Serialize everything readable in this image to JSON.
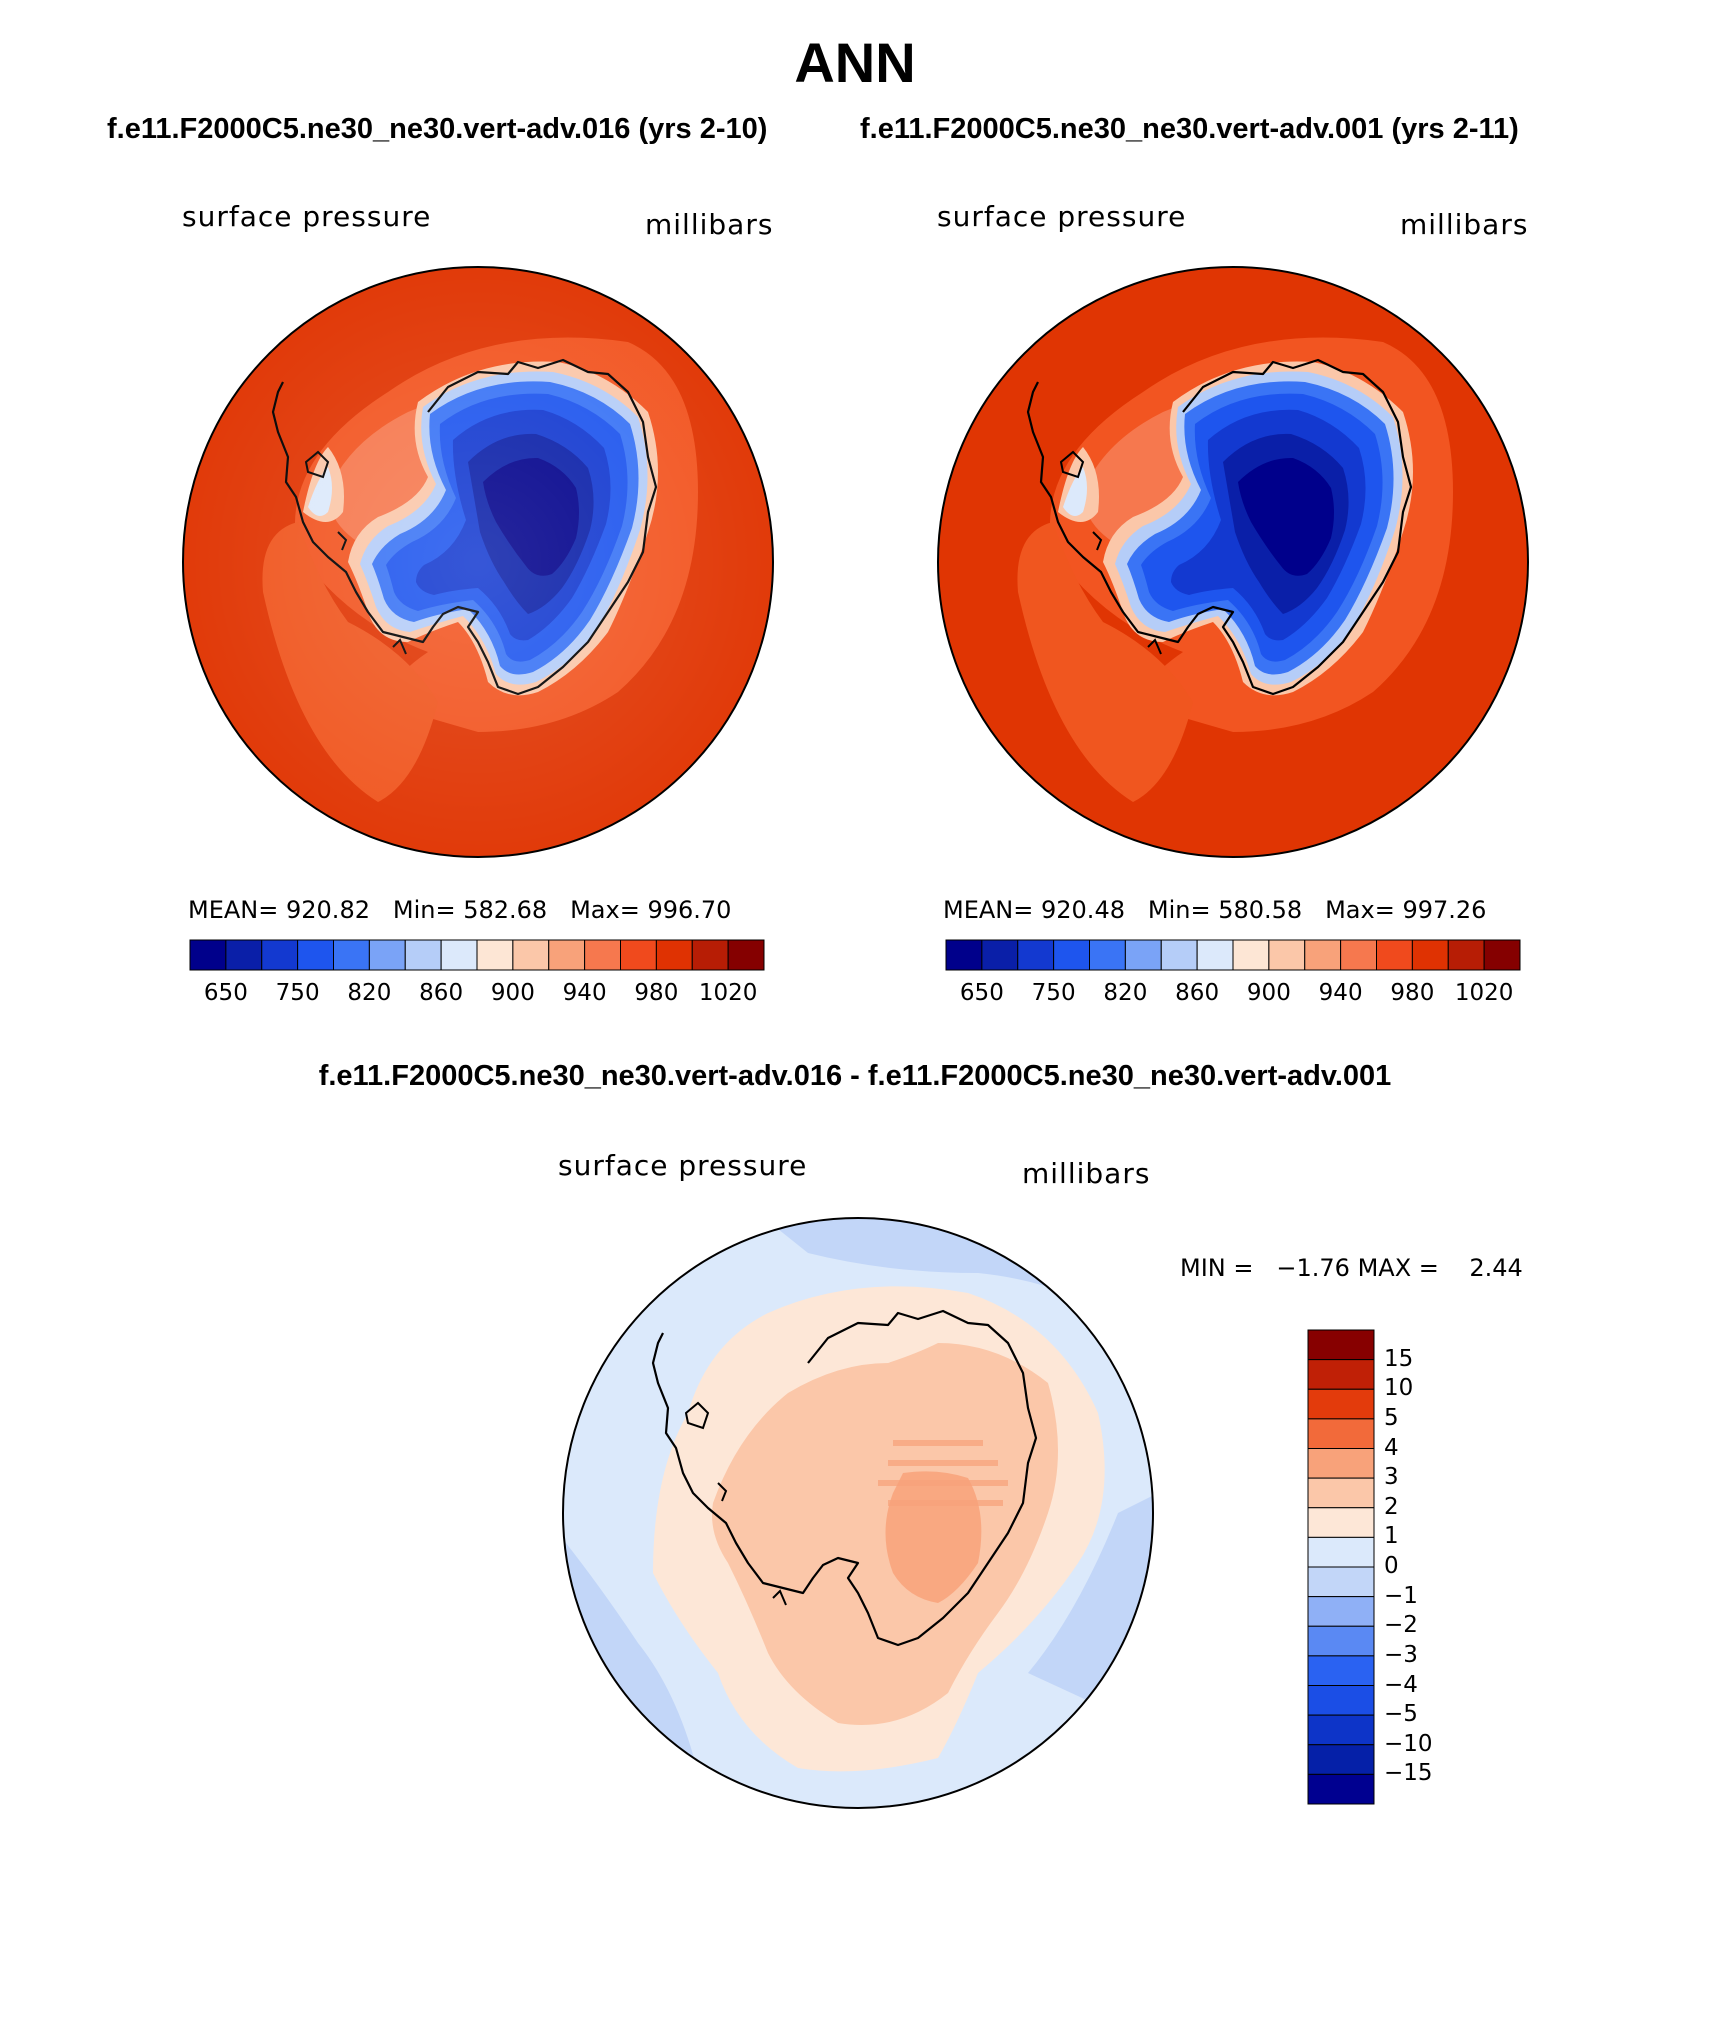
{
  "title": "ANN",
  "top_left_case": "f.e11.F2000C5.ne30_ne30.vert-adv.016 (yrs 2-10)",
  "top_right_case": "f.e11.F2000C5.ne30_ne30.vert-adv.001 (yrs 2-11)",
  "diff_title": "f.e11.F2000C5.ne30_ne30.vert-adv.016 - f.e11.F2000C5.ne30_ne30.vert-adv.001",
  "panels": [
    {
      "variable": "surface pressure",
      "units": "millibars",
      "mean_label": "MEAN=",
      "mean": "920.82",
      "min_label": "Min=",
      "min": "582.68",
      "max_label": "Max=",
      "max": "996.70"
    },
    {
      "variable": "surface pressure",
      "units": "millibars",
      "mean_label": "MEAN=",
      "mean": "920.48",
      "min_label": "Min=",
      "min": "580.58",
      "max_label": "Max=",
      "max": "997.26"
    }
  ],
  "diff_panel": {
    "variable": "surface pressure",
    "units": "millibars",
    "min_label": "MIN =",
    "min": "−1.76",
    "max_label": "MAX =",
    "max": "2.44"
  },
  "colorbar": {
    "colors": [
      "#00008b",
      "#0a1fa8",
      "#1339d0",
      "#1e55ee",
      "#3a74f5",
      "#7aa3f7",
      "#b5cdf8",
      "#dce9fb",
      "#fde6d5",
      "#fbc7a9",
      "#f8a27a",
      "#f6784e",
      "#f04a1d",
      "#df3202",
      "#b71d05",
      "#850000"
    ],
    "tick_labels": [
      "650",
      "750",
      "820",
      "860",
      "900",
      "940",
      "980",
      "1020"
    ]
  },
  "diff_colorbar": {
    "colors_bottom_to_top": [
      "#000090",
      "#0520a8",
      "#0d34c8",
      "#1b4ee6",
      "#2a62f2",
      "#5a89f3",
      "#8fb0f6",
      "#c2d6f8",
      "#dbe9fb",
      "#fde7d7",
      "#fbc7a9",
      "#f8a27a",
      "#f26a3a",
      "#e33b0c",
      "#c02006",
      "#870000"
    ],
    "tick_labels_top_to_bottom": [
      "15",
      "10",
      "5",
      "4",
      "3",
      "2",
      "1",
      "0",
      "−1",
      "−2",
      "−3",
      "−4",
      "−5",
      "−10",
      "−15"
    ]
  }
}
